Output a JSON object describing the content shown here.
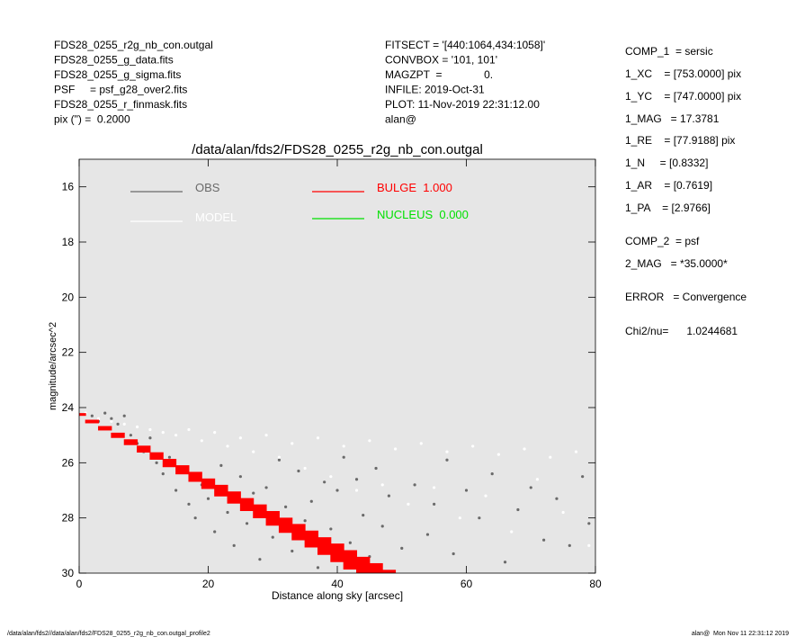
{
  "header": {
    "left": [
      "FDS28_0255_r2g_nb_con.outgal",
      "FDS28_0255_g_data.fits",
      "FDS28_0255_g_sigma.fits",
      "PSF     = psf_g28_over2.fits",
      "FDS28_0255_r_finmask.fits",
      "pix (\") =  0.2000"
    ],
    "middle": [
      "FITSECT = '[440:1064,434:1058]'",
      "CONVBOX = '101, 101'",
      "MAGZPT  =              0.",
      "INFILE: 2019-Oct-31",
      "PLOT: 11-Nov-2019 22:31:12.00",
      "alan@"
    ]
  },
  "panel": [
    "COMP_1  = sersic",
    "1_XC    = [753.0000] pix",
    "1_YC    = [747.0000] pix",
    "1_MAG   = 17.3781",
    "1_RE    = [77.9188] pix",
    "1_N     = [0.8332]",
    "1_AR    = [0.7619]",
    "1_PA    = [2.9766]",
    "COMP_2  = psf",
    "2_MAG   = *35.0000*",
    "ERROR   = Convergence",
    "Chi2/nu=      1.0244681"
  ],
  "footer": {
    "left": "/data/alan/fds2//data/alan/fds2/FDS28_0255_r2g_nb_con.outgal_profile2",
    "right": "alan@  Mon Nov 11 22:31:12 2019"
  },
  "chart_data": {
    "type": "scatter",
    "title": "/data/alan/fds2/FDS28_0255_r2g_nb_con.outgal",
    "x_label": "Distance along sky [arcsec]",
    "y_label": "magnitude/arcsec^2",
    "xlim": [
      0,
      80
    ],
    "xticks": [
      0,
      20,
      40,
      60,
      80
    ],
    "ylim": [
      30,
      15
    ],
    "yticks": [
      16,
      18,
      20,
      22,
      24,
      26,
      28,
      30
    ],
    "series": [
      {
        "name": "OBS",
        "color": "#6a6a6a",
        "x": [
          2,
          3,
          4,
          5,
          6,
          7,
          8,
          9,
          10,
          11,
          12,
          13,
          14,
          15,
          16,
          17,
          18,
          19,
          20,
          21,
          22,
          23,
          24,
          25,
          26,
          27,
          28,
          29,
          30,
          31,
          32,
          33,
          34,
          35,
          36,
          37,
          38,
          39,
          40,
          41,
          42,
          43,
          44,
          45,
          46,
          47,
          48,
          50,
          52,
          54,
          55,
          57,
          58,
          60,
          62,
          64,
          66,
          68,
          70,
          72,
          74,
          76,
          78,
          79
        ],
        "values": [
          24.3,
          24.5,
          24.2,
          24.4,
          24.6,
          24.3,
          25.0,
          25.3,
          25.6,
          25.1,
          26.0,
          26.4,
          25.8,
          27.0,
          26.2,
          27.5,
          28.0,
          26.8,
          27.3,
          28.5,
          26.1,
          27.8,
          29.0,
          26.5,
          28.2,
          27.1,
          29.5,
          26.9,
          28.7,
          25.9,
          27.6,
          29.2,
          26.3,
          28.1,
          27.4,
          29.8,
          26.7,
          28.4,
          27.0,
          25.8,
          28.9,
          26.6,
          27.9,
          29.4,
          26.2,
          28.3,
          27.2,
          29.1,
          26.8,
          28.6,
          27.5,
          25.9,
          29.3,
          27.0,
          28.0,
          26.4,
          29.6,
          27.7,
          26.9,
          28.8,
          27.3,
          29.0,
          26.5,
          28.2
        ]
      },
      {
        "name": "MODEL",
        "color": "#ffffff",
        "x": [
          1,
          3,
          5,
          7,
          9,
          11,
          13,
          15,
          17,
          19,
          21,
          23,
          25,
          27,
          29,
          31,
          33,
          35,
          37,
          39,
          41,
          43,
          45,
          47,
          49,
          51,
          53,
          55,
          57,
          59,
          61,
          63,
          65,
          67,
          69,
          71,
          73,
          75,
          77,
          79
        ],
        "values": [
          24.2,
          24.4,
          24.5,
          24.6,
          24.7,
          24.8,
          24.9,
          25.0,
          24.8,
          25.2,
          24.9,
          25.4,
          25.1,
          25.6,
          25.0,
          25.8,
          25.3,
          26.2,
          25.1,
          26.5,
          25.4,
          27.0,
          25.2,
          26.8,
          25.5,
          27.5,
          25.3,
          26.9,
          25.6,
          28.0,
          25.4,
          27.2,
          25.7,
          28.5,
          25.5,
          26.6,
          25.8,
          27.8,
          25.6,
          29.0
        ]
      },
      {
        "name": "BULGE  1.000",
        "color": "#ff0000",
        "x": [
          0,
          2,
          4,
          6,
          8,
          10,
          12,
          14,
          16,
          18,
          20,
          22,
          24,
          26,
          28,
          30,
          32,
          34,
          36,
          38,
          40,
          42,
          44,
          46,
          48
        ],
        "values": [
          24.2,
          24.44,
          24.67,
          24.91,
          25.15,
          25.38,
          25.62,
          25.86,
          26.09,
          26.33,
          26.57,
          26.8,
          27.04,
          27.28,
          27.51,
          27.75,
          27.99,
          28.22,
          28.46,
          28.7,
          28.93,
          29.17,
          29.41,
          29.64,
          29.88
        ],
        "values_lower": [
          24.3,
          24.57,
          24.83,
          25.1,
          25.36,
          25.63,
          25.89,
          26.16,
          26.42,
          26.69,
          26.95,
          27.22,
          27.48,
          27.75,
          28.01,
          28.28,
          28.54,
          28.81,
          29.07,
          29.34,
          29.6,
          29.87,
          30,
          30,
          30
        ]
      },
      {
        "name": "NUCLEUS  0.000",
        "color": "#00e000"
      }
    ]
  }
}
